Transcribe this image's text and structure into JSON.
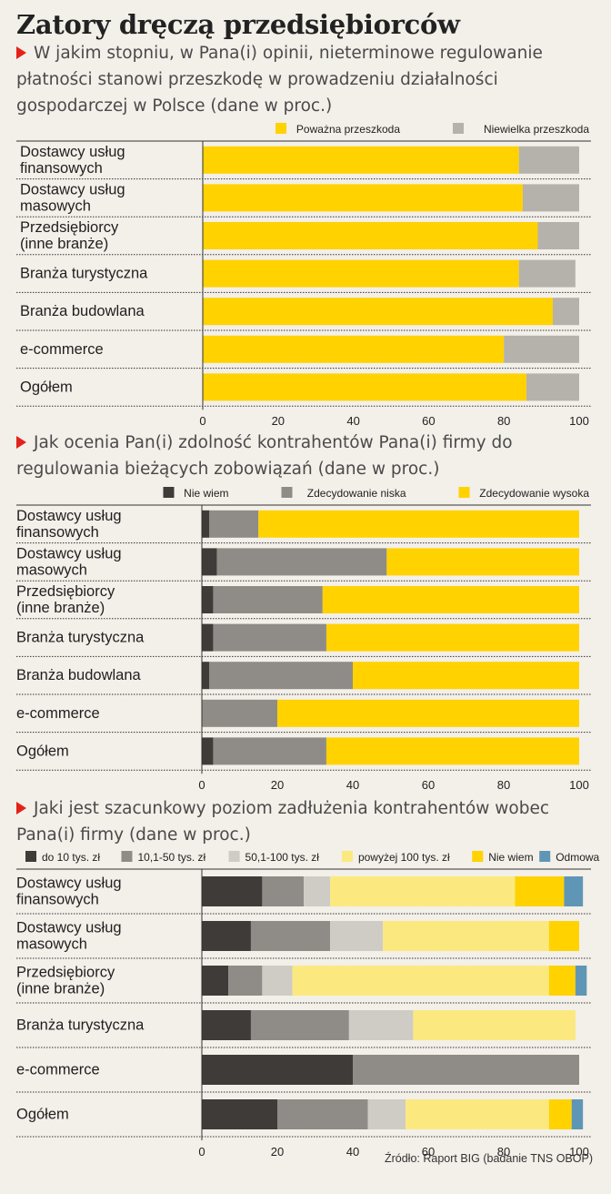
{
  "title": "Zatory dręczą przedsiębiorców",
  "source": "Źródło: Raport BIG (badanie TNS OBOP)",
  "chart_data": [
    {
      "type": "bar",
      "orientation": "horizontal",
      "stacked": true,
      "title": "W jakim stopniu, w Pana(i) opinii, nieterminowe regulowanie płatności stanowi przeszkodę w prowadzeniu działalności gospodarczej w Polsce (dane w proc.)",
      "categories": [
        "Dostawcy usług finansowych",
        "Dostawcy usług masowych",
        "Przedsiębiorcy (inne branże)",
        "Branża turystyczna",
        "Branża budowlana",
        "e-commerce",
        "Ogółem"
      ],
      "series": [
        {
          "name": "Poważna przeszkoda",
          "color": "#ffd200",
          "values": [
            84,
            85,
            89,
            84,
            93,
            80,
            86
          ]
        },
        {
          "name": "Niewielka przeszkoda",
          "color": "#b5b1ab",
          "values": [
            16,
            15,
            11,
            15,
            7,
            20,
            14
          ]
        }
      ],
      "xlim": [
        0,
        100
      ],
      "xticks": [
        0,
        20,
        40,
        60,
        80,
        100
      ],
      "grid": false,
      "legend": "top-right"
    },
    {
      "type": "bar",
      "orientation": "horizontal",
      "stacked": true,
      "title": "Jak ocenia Pan(i) zdolność kontrahentów Pana(i) firmy do regulowania bieżących zobowiązań (dane w proc.)",
      "categories": [
        "Dostawcy usług finansowych",
        "Dostawcy usług masowych",
        "Przedsiębiorcy (inne branże)",
        "Branża turystyczna",
        "Branża budowlana",
        "e-commerce",
        "Ogółem"
      ],
      "series": [
        {
          "name": "Nie wiem",
          "color": "#3e3b39",
          "values": [
            2,
            4,
            3,
            3,
            2,
            0,
            3
          ]
        },
        {
          "name": "Zdecydowanie niska",
          "color": "#8f8c87",
          "values": [
            13,
            45,
            29,
            30,
            38,
            20,
            30
          ]
        },
        {
          "name": "Zdecydowanie wysoka",
          "color": "#ffd200",
          "values": [
            85,
            51,
            68,
            67,
            60,
            80,
            67
          ]
        }
      ],
      "xlim": [
        0,
        100
      ],
      "xticks": [
        0,
        20,
        40,
        60,
        80,
        100
      ],
      "grid": false,
      "legend": "top-right"
    },
    {
      "type": "bar",
      "orientation": "horizontal",
      "stacked": true,
      "title": "Jaki jest szacunkowy poziom zadłużenia kontrahentów wobec Pana(i) firmy (dane w proc.)",
      "categories": [
        "Dostawcy usług finansowych",
        "Dostawcy usług masowych",
        "Przedsiębiorcy (inne branże)",
        "Branża turystyczna",
        "e-commerce",
        "Ogółem"
      ],
      "series": [
        {
          "name": "do 10 tys. zł",
          "color": "#3e3b39",
          "values": [
            16,
            13,
            7,
            13,
            40,
            20
          ]
        },
        {
          "name": "10,1-50 tys. zł",
          "color": "#8f8c87",
          "values": [
            11,
            21,
            9,
            26,
            60,
            24
          ]
        },
        {
          "name": "50,1-100 tys. zł",
          "color": "#cfcbc5",
          "values": [
            7,
            14,
            8,
            17,
            0,
            10
          ]
        },
        {
          "name": "powyżej 100 tys. zł",
          "color": "#fbe97f",
          "values": [
            49,
            44,
            68,
            43,
            0,
            38
          ]
        },
        {
          "name": "Nie wiem",
          "color": "#ffd200",
          "values": [
            13,
            8,
            7,
            0,
            0,
            6
          ]
        },
        {
          "name": "Odmowa",
          "color": "#5f96b5",
          "values": [
            5,
            0,
            3,
            0,
            0,
            3
          ]
        }
      ],
      "xlim": [
        0,
        100
      ],
      "xticks": [
        0,
        20,
        40,
        60,
        80,
        100
      ],
      "grid": false,
      "legend": "top"
    }
  ]
}
